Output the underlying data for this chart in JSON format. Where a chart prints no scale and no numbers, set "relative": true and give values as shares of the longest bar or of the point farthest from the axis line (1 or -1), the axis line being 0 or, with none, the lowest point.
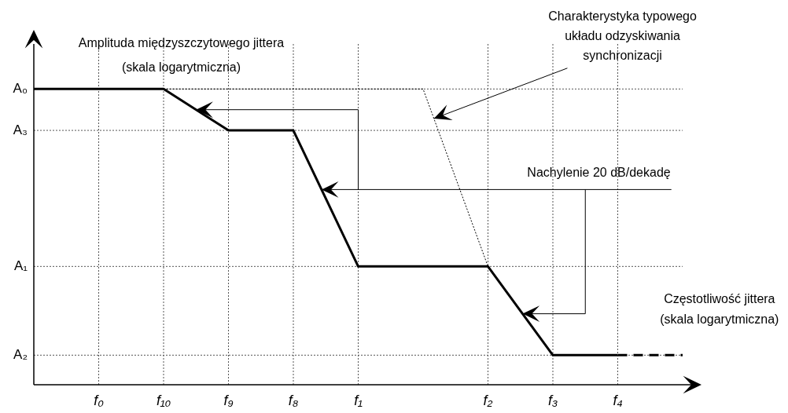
{
  "chart_data": {
    "type": "line",
    "relative": true,
    "xlabel": "Częstotliwość jittera\n(skala logarytmiczna)",
    "ylabel": "Amplituda międzyszczytowego jittera\n(skala logarytmiczna)",
    "categories": [
      null,
      "f₀",
      "f₁₀",
      "f₉",
      "f₈",
      "f₁",
      null,
      "f₂",
      "f₃",
      "f₄",
      null
    ],
    "annotations": [
      "Charakterystyka typowego\nukładu odzyskiwania\nsynchronizacji",
      "Nachylenie 20 dB/dekadę",
      "A₀",
      "A₃",
      "A₁",
      "A₂"
    ],
    "grid": true,
    "marker": "none",
    "series": [
      {
        "color": "#000000",
        "line_style": "solid",
        "values": [
          1,
          1,
          1,
          0.86,
          0.86,
          0.4,
          0.4,
          0.4,
          0.1,
          0.1,
          null
        ]
      },
      {
        "color": "#000000",
        "line_style": "dashed",
        "values": [
          null,
          null,
          null,
          null,
          null,
          null,
          null,
          null,
          null,
          0.1,
          0.1
        ]
      },
      {
        "color": "#000000",
        "line_style": "dotted",
        "values": [
          null,
          null,
          1,
          1,
          1,
          1,
          1,
          0.4,
          null,
          null,
          null
        ]
      }
    ]
  }
}
